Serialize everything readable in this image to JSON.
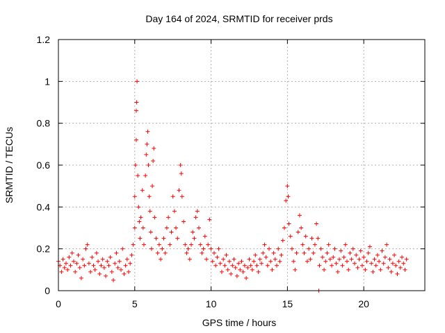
{
  "chart_data": {
    "type": "scatter",
    "title": "Day 164 of 2024, SRMTID for receiver prds",
    "xlabel": "GPS time / hours",
    "ylabel": "SRMTID / TECUs",
    "xlim": [
      0,
      24
    ],
    "ylim": [
      0,
      1.2
    ],
    "xticks": [
      0,
      5,
      10,
      15,
      20
    ],
    "xtick_labels": [
      "0",
      "5",
      "10",
      "15",
      "20"
    ],
    "yticks": [
      0,
      0.2,
      0.4,
      0.6,
      0.8,
      1.0,
      1.2
    ],
    "ytick_labels": [
      "0",
      "0.2",
      "0.4",
      "0.6",
      "0.8",
      "1",
      "1.2"
    ],
    "grid": true,
    "marker": "+",
    "color": "#ff0000",
    "series": [
      {
        "name": "SRMTID",
        "points": [
          [
            0.0,
            0.14
          ],
          [
            0.1,
            0.12
          ],
          [
            0.2,
            0.09
          ],
          [
            0.3,
            0.15
          ],
          [
            0.4,
            0.11
          ],
          [
            0.5,
            0.13
          ],
          [
            0.6,
            0.1
          ],
          [
            0.7,
            0.16
          ],
          [
            0.8,
            0.12
          ],
          [
            0.9,
            0.18
          ],
          [
            1.0,
            0.14
          ],
          [
            1.1,
            0.09
          ],
          [
            1.2,
            0.13
          ],
          [
            1.3,
            0.17
          ],
          [
            1.4,
            0.11
          ],
          [
            1.5,
            0.06
          ],
          [
            1.6,
            0.15
          ],
          [
            1.7,
            0.12
          ],
          [
            1.8,
            0.2
          ],
          [
            1.9,
            0.22
          ],
          [
            2.0,
            0.13
          ],
          [
            2.1,
            0.09
          ],
          [
            2.2,
            0.16
          ],
          [
            2.3,
            0.12
          ],
          [
            2.4,
            0.1
          ],
          [
            2.5,
            0.18
          ],
          [
            2.6,
            0.14
          ],
          [
            2.7,
            0.08
          ],
          [
            2.8,
            0.12
          ],
          [
            2.9,
            0.15
          ],
          [
            3.0,
            0.11
          ],
          [
            3.1,
            0.07
          ],
          [
            3.2,
            0.14
          ],
          [
            3.3,
            0.12
          ],
          [
            3.4,
            0.16
          ],
          [
            3.5,
            0.09
          ],
          [
            3.6,
            0.05
          ],
          [
            3.7,
            0.13
          ],
          [
            3.8,
            0.18
          ],
          [
            3.9,
            0.11
          ],
          [
            4.0,
            0.14
          ],
          [
            4.1,
            0.1
          ],
          [
            4.2,
            0.2
          ],
          [
            4.3,
            0.08
          ],
          [
            4.4,
            0.12
          ],
          [
            4.5,
            0.15
          ],
          [
            4.6,
            0.09
          ],
          [
            4.7,
            0.13
          ],
          [
            4.8,
            0.17
          ],
          [
            4.9,
            0.22
          ],
          [
            5.0,
            0.3
          ],
          [
            5.0,
            0.45
          ],
          [
            5.05,
            0.6
          ],
          [
            5.1,
            0.72
          ],
          [
            5.1,
            0.86
          ],
          [
            5.12,
            0.9
          ],
          [
            5.15,
            1.0
          ],
          [
            5.2,
            0.55
          ],
          [
            5.25,
            0.4
          ],
          [
            5.3,
            0.33
          ],
          [
            5.35,
            0.25
          ],
          [
            5.4,
            0.35
          ],
          [
            5.5,
            0.48
          ],
          [
            5.55,
            0.3
          ],
          [
            5.6,
            0.22
          ],
          [
            5.7,
            0.55
          ],
          [
            5.75,
            0.65
          ],
          [
            5.8,
            0.7
          ],
          [
            5.85,
            0.76
          ],
          [
            5.9,
            0.6
          ],
          [
            5.95,
            0.45
          ],
          [
            6.0,
            0.38
          ],
          [
            6.05,
            0.28
          ],
          [
            6.1,
            0.2
          ],
          [
            6.15,
            0.5
          ],
          [
            6.2,
            0.62
          ],
          [
            6.25,
            0.68
          ],
          [
            6.3,
            0.35
          ],
          [
            6.4,
            0.25
          ],
          [
            6.5,
            0.18
          ],
          [
            6.6,
            0.22
          ],
          [
            6.7,
            0.15
          ],
          [
            6.8,
            0.2
          ],
          [
            6.9,
            0.25
          ],
          [
            7.0,
            0.18
          ],
          [
            7.1,
            0.3
          ],
          [
            7.2,
            0.35
          ],
          [
            7.3,
            0.22
          ],
          [
            7.4,
            0.28
          ],
          [
            7.5,
            0.45
          ],
          [
            7.6,
            0.38
          ],
          [
            7.7,
            0.3
          ],
          [
            7.8,
            0.25
          ],
          [
            7.9,
            0.48
          ],
          [
            8.0,
            0.6
          ],
          [
            8.05,
            0.56
          ],
          [
            8.1,
            0.45
          ],
          [
            8.2,
            0.33
          ],
          [
            8.3,
            0.22
          ],
          [
            8.4,
            0.18
          ],
          [
            8.5,
            0.2
          ],
          [
            8.6,
            0.15
          ],
          [
            8.7,
            0.22
          ],
          [
            8.8,
            0.28
          ],
          [
            8.9,
            0.25
          ],
          [
            9.0,
            0.35
          ],
          [
            9.1,
            0.38
          ],
          [
            9.2,
            0.3
          ],
          [
            9.3,
            0.22
          ],
          [
            9.4,
            0.18
          ],
          [
            9.5,
            0.2
          ],
          [
            9.6,
            0.26
          ],
          [
            9.7,
            0.15
          ],
          [
            9.8,
            0.22
          ],
          [
            9.9,
            0.34
          ],
          [
            10.0,
            0.2
          ],
          [
            10.1,
            0.14
          ],
          [
            10.2,
            0.18
          ],
          [
            10.3,
            0.12
          ],
          [
            10.4,
            0.16
          ],
          [
            10.5,
            0.2
          ],
          [
            10.6,
            0.13
          ],
          [
            10.7,
            0.09
          ],
          [
            10.8,
            0.15
          ],
          [
            10.9,
            0.12
          ],
          [
            11.0,
            0.17
          ],
          [
            11.1,
            0.1
          ],
          [
            11.2,
            0.14
          ],
          [
            11.3,
            0.08
          ],
          [
            11.4,
            0.12
          ],
          [
            11.5,
            0.15
          ],
          [
            11.6,
            0.11
          ],
          [
            11.7,
            0.07
          ],
          [
            11.8,
            0.13
          ],
          [
            11.9,
            0.1
          ],
          [
            12.0,
            0.14
          ],
          [
            12.1,
            0.09
          ],
          [
            12.2,
            0.12
          ],
          [
            12.3,
            0.06
          ],
          [
            12.4,
            0.11
          ],
          [
            12.5,
            0.15
          ],
          [
            12.6,
            0.12
          ],
          [
            12.7,
            0.1
          ],
          [
            12.8,
            0.14
          ],
          [
            12.9,
            0.17
          ],
          [
            13.0,
            0.12
          ],
          [
            13.1,
            0.09
          ],
          [
            13.2,
            0.15
          ],
          [
            13.3,
            0.13
          ],
          [
            13.4,
            0.18
          ],
          [
            13.5,
            0.22
          ],
          [
            13.6,
            0.16
          ],
          [
            13.7,
            0.12
          ],
          [
            13.8,
            0.2
          ],
          [
            13.9,
            0.14
          ],
          [
            14.0,
            0.1
          ],
          [
            14.1,
            0.18
          ],
          [
            14.2,
            0.15
          ],
          [
            14.3,
            0.12
          ],
          [
            14.4,
            0.2
          ],
          [
            14.5,
            0.14
          ],
          [
            14.6,
            0.17
          ],
          [
            14.7,
            0.24
          ],
          [
            14.8,
            0.3
          ],
          [
            14.9,
            0.43
          ],
          [
            15.0,
            0.5
          ],
          [
            15.05,
            0.45
          ],
          [
            15.1,
            0.32
          ],
          [
            15.2,
            0.26
          ],
          [
            15.3,
            0.2
          ],
          [
            15.4,
            0.14
          ],
          [
            15.5,
            0.1
          ],
          [
            15.6,
            0.18
          ],
          [
            15.7,
            0.28
          ],
          [
            15.8,
            0.36
          ],
          [
            15.9,
            0.3
          ],
          [
            16.0,
            0.22
          ],
          [
            16.1,
            0.18
          ],
          [
            16.2,
            0.26
          ],
          [
            16.3,
            0.14
          ],
          [
            16.4,
            0.2
          ],
          [
            16.5,
            0.15
          ],
          [
            16.6,
            0.25
          ],
          [
            16.7,
            0.18
          ],
          [
            16.8,
            0.22
          ],
          [
            16.9,
            0.32
          ],
          [
            17.0,
            0.25
          ],
          [
            17.05,
            0.0
          ],
          [
            17.1,
            0.12
          ],
          [
            17.2,
            0.2
          ],
          [
            17.3,
            0.16
          ],
          [
            17.4,
            0.1
          ],
          [
            17.5,
            0.14
          ],
          [
            17.6,
            0.18
          ],
          [
            17.7,
            0.22
          ],
          [
            17.8,
            0.15
          ],
          [
            17.9,
            0.12
          ],
          [
            18.0,
            0.16
          ],
          [
            18.1,
            0.2
          ],
          [
            18.2,
            0.13
          ],
          [
            18.3,
            0.09
          ],
          [
            18.4,
            0.15
          ],
          [
            18.5,
            0.19
          ],
          [
            18.6,
            0.12
          ],
          [
            18.7,
            0.16
          ],
          [
            18.8,
            0.22
          ],
          [
            18.9,
            0.14
          ],
          [
            19.0,
            0.1
          ],
          [
            19.1,
            0.18
          ],
          [
            19.2,
            0.15
          ],
          [
            19.3,
            0.2
          ],
          [
            19.4,
            0.13
          ],
          [
            19.5,
            0.17
          ],
          [
            19.6,
            0.11
          ],
          [
            19.7,
            0.15
          ],
          [
            19.8,
            0.19
          ],
          [
            19.9,
            0.12
          ],
          [
            20.0,
            0.16
          ],
          [
            20.1,
            0.1
          ],
          [
            20.2,
            0.14
          ],
          [
            20.3,
            0.18
          ],
          [
            20.4,
            0.21
          ],
          [
            20.5,
            0.13
          ],
          [
            20.6,
            0.09
          ],
          [
            20.7,
            0.15
          ],
          [
            20.8,
            0.12
          ],
          [
            20.9,
            0.17
          ],
          [
            21.0,
            0.14
          ],
          [
            21.1,
            0.1
          ],
          [
            21.2,
            0.19
          ],
          [
            21.3,
            0.13
          ],
          [
            21.4,
            0.16
          ],
          [
            21.5,
            0.22
          ],
          [
            21.6,
            0.11
          ],
          [
            21.7,
            0.15
          ],
          [
            21.8,
            0.09
          ],
          [
            21.9,
            0.13
          ],
          [
            22.0,
            0.17
          ],
          [
            22.1,
            0.12
          ],
          [
            22.2,
            0.08
          ],
          [
            22.3,
            0.14
          ],
          [
            22.4,
            0.11
          ],
          [
            22.5,
            0.16
          ],
          [
            22.6,
            0.13
          ],
          [
            22.7,
            0.1
          ],
          [
            22.8,
            0.15
          ]
        ]
      }
    ]
  }
}
